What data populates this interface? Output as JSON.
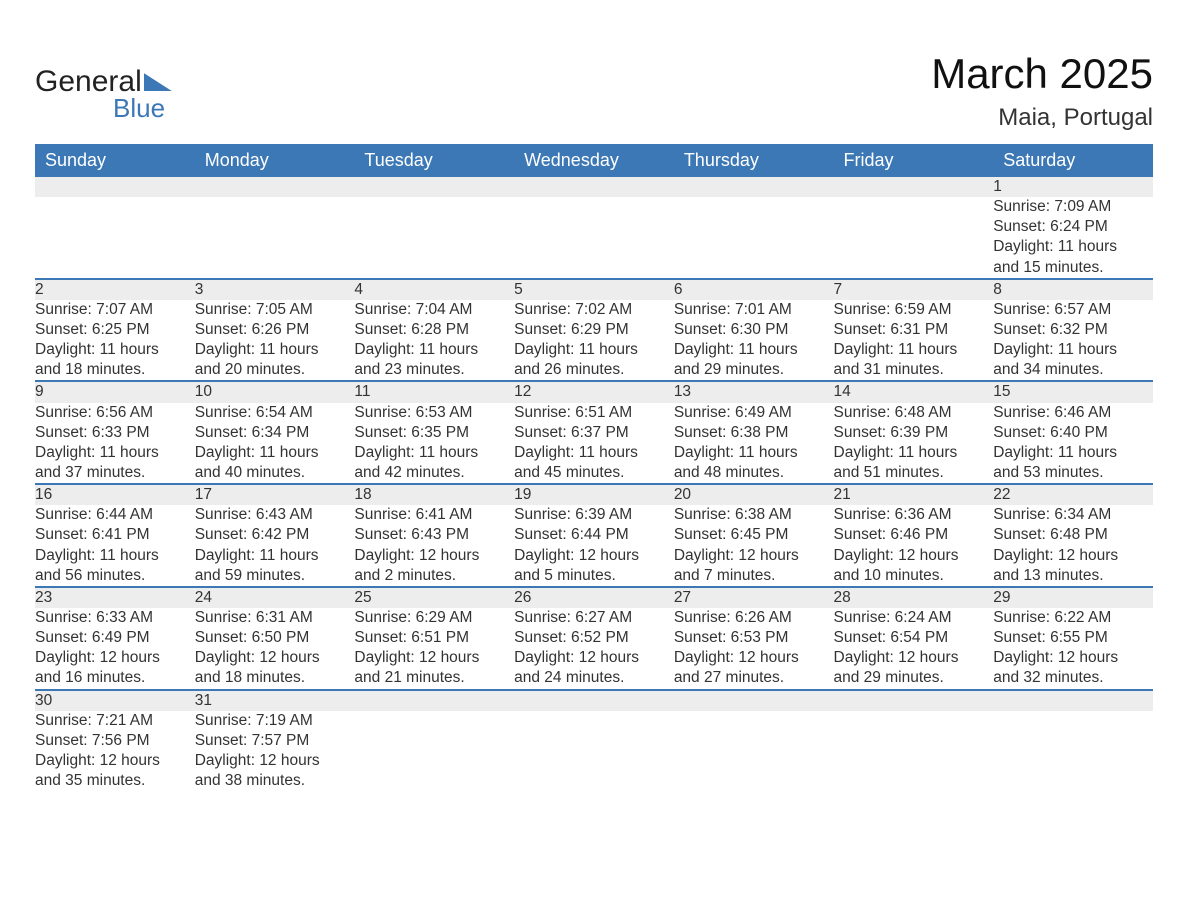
{
  "logo": {
    "text1": "General",
    "text2": "Blue",
    "shape_color": "#3b78b5"
  },
  "title": "March 2025",
  "location": "Maia, Portugal",
  "colors": {
    "header_bg": "#3b78b5",
    "header_text": "#ffffff",
    "daynum_bg": "#ededed",
    "text": "#333333",
    "separator": "#3b78b5",
    "background": "#ffffff"
  },
  "dow": [
    "Sunday",
    "Monday",
    "Tuesday",
    "Wednesday",
    "Thursday",
    "Friday",
    "Saturday"
  ],
  "weeks": [
    [
      null,
      null,
      null,
      null,
      null,
      null,
      {
        "n": "1",
        "sr": "Sunrise: 7:09 AM",
        "ss": "Sunset: 6:24 PM",
        "dl1": "Daylight: 11 hours",
        "dl2": "and 15 minutes."
      }
    ],
    [
      {
        "n": "2",
        "sr": "Sunrise: 7:07 AM",
        "ss": "Sunset: 6:25 PM",
        "dl1": "Daylight: 11 hours",
        "dl2": "and 18 minutes."
      },
      {
        "n": "3",
        "sr": "Sunrise: 7:05 AM",
        "ss": "Sunset: 6:26 PM",
        "dl1": "Daylight: 11 hours",
        "dl2": "and 20 minutes."
      },
      {
        "n": "4",
        "sr": "Sunrise: 7:04 AM",
        "ss": "Sunset: 6:28 PM",
        "dl1": "Daylight: 11 hours",
        "dl2": "and 23 minutes."
      },
      {
        "n": "5",
        "sr": "Sunrise: 7:02 AM",
        "ss": "Sunset: 6:29 PM",
        "dl1": "Daylight: 11 hours",
        "dl2": "and 26 minutes."
      },
      {
        "n": "6",
        "sr": "Sunrise: 7:01 AM",
        "ss": "Sunset: 6:30 PM",
        "dl1": "Daylight: 11 hours",
        "dl2": "and 29 minutes."
      },
      {
        "n": "7",
        "sr": "Sunrise: 6:59 AM",
        "ss": "Sunset: 6:31 PM",
        "dl1": "Daylight: 11 hours",
        "dl2": "and 31 minutes."
      },
      {
        "n": "8",
        "sr": "Sunrise: 6:57 AM",
        "ss": "Sunset: 6:32 PM",
        "dl1": "Daylight: 11 hours",
        "dl2": "and 34 minutes."
      }
    ],
    [
      {
        "n": "9",
        "sr": "Sunrise: 6:56 AM",
        "ss": "Sunset: 6:33 PM",
        "dl1": "Daylight: 11 hours",
        "dl2": "and 37 minutes."
      },
      {
        "n": "10",
        "sr": "Sunrise: 6:54 AM",
        "ss": "Sunset: 6:34 PM",
        "dl1": "Daylight: 11 hours",
        "dl2": "and 40 minutes."
      },
      {
        "n": "11",
        "sr": "Sunrise: 6:53 AM",
        "ss": "Sunset: 6:35 PM",
        "dl1": "Daylight: 11 hours",
        "dl2": "and 42 minutes."
      },
      {
        "n": "12",
        "sr": "Sunrise: 6:51 AM",
        "ss": "Sunset: 6:37 PM",
        "dl1": "Daylight: 11 hours",
        "dl2": "and 45 minutes."
      },
      {
        "n": "13",
        "sr": "Sunrise: 6:49 AM",
        "ss": "Sunset: 6:38 PM",
        "dl1": "Daylight: 11 hours",
        "dl2": "and 48 minutes."
      },
      {
        "n": "14",
        "sr": "Sunrise: 6:48 AM",
        "ss": "Sunset: 6:39 PM",
        "dl1": "Daylight: 11 hours",
        "dl2": "and 51 minutes."
      },
      {
        "n": "15",
        "sr": "Sunrise: 6:46 AM",
        "ss": "Sunset: 6:40 PM",
        "dl1": "Daylight: 11 hours",
        "dl2": "and 53 minutes."
      }
    ],
    [
      {
        "n": "16",
        "sr": "Sunrise: 6:44 AM",
        "ss": "Sunset: 6:41 PM",
        "dl1": "Daylight: 11 hours",
        "dl2": "and 56 minutes."
      },
      {
        "n": "17",
        "sr": "Sunrise: 6:43 AM",
        "ss": "Sunset: 6:42 PM",
        "dl1": "Daylight: 11 hours",
        "dl2": "and 59 minutes."
      },
      {
        "n": "18",
        "sr": "Sunrise: 6:41 AM",
        "ss": "Sunset: 6:43 PM",
        "dl1": "Daylight: 12 hours",
        "dl2": "and 2 minutes."
      },
      {
        "n": "19",
        "sr": "Sunrise: 6:39 AM",
        "ss": "Sunset: 6:44 PM",
        "dl1": "Daylight: 12 hours",
        "dl2": "and 5 minutes."
      },
      {
        "n": "20",
        "sr": "Sunrise: 6:38 AM",
        "ss": "Sunset: 6:45 PM",
        "dl1": "Daylight: 12 hours",
        "dl2": "and 7 minutes."
      },
      {
        "n": "21",
        "sr": "Sunrise: 6:36 AM",
        "ss": "Sunset: 6:46 PM",
        "dl1": "Daylight: 12 hours",
        "dl2": "and 10 minutes."
      },
      {
        "n": "22",
        "sr": "Sunrise: 6:34 AM",
        "ss": "Sunset: 6:48 PM",
        "dl1": "Daylight: 12 hours",
        "dl2": "and 13 minutes."
      }
    ],
    [
      {
        "n": "23",
        "sr": "Sunrise: 6:33 AM",
        "ss": "Sunset: 6:49 PM",
        "dl1": "Daylight: 12 hours",
        "dl2": "and 16 minutes."
      },
      {
        "n": "24",
        "sr": "Sunrise: 6:31 AM",
        "ss": "Sunset: 6:50 PM",
        "dl1": "Daylight: 12 hours",
        "dl2": "and 18 minutes."
      },
      {
        "n": "25",
        "sr": "Sunrise: 6:29 AM",
        "ss": "Sunset: 6:51 PM",
        "dl1": "Daylight: 12 hours",
        "dl2": "and 21 minutes."
      },
      {
        "n": "26",
        "sr": "Sunrise: 6:27 AM",
        "ss": "Sunset: 6:52 PM",
        "dl1": "Daylight: 12 hours",
        "dl2": "and 24 minutes."
      },
      {
        "n": "27",
        "sr": "Sunrise: 6:26 AM",
        "ss": "Sunset: 6:53 PM",
        "dl1": "Daylight: 12 hours",
        "dl2": "and 27 minutes."
      },
      {
        "n": "28",
        "sr": "Sunrise: 6:24 AM",
        "ss": "Sunset: 6:54 PM",
        "dl1": "Daylight: 12 hours",
        "dl2": "and 29 minutes."
      },
      {
        "n": "29",
        "sr": "Sunrise: 6:22 AM",
        "ss": "Sunset: 6:55 PM",
        "dl1": "Daylight: 12 hours",
        "dl2": "and 32 minutes."
      }
    ],
    [
      {
        "n": "30",
        "sr": "Sunrise: 7:21 AM",
        "ss": "Sunset: 7:56 PM",
        "dl1": "Daylight: 12 hours",
        "dl2": "and 35 minutes."
      },
      {
        "n": "31",
        "sr": "Sunrise: 7:19 AM",
        "ss": "Sunset: 7:57 PM",
        "dl1": "Daylight: 12 hours",
        "dl2": "and 38 minutes."
      },
      null,
      null,
      null,
      null,
      null
    ]
  ]
}
